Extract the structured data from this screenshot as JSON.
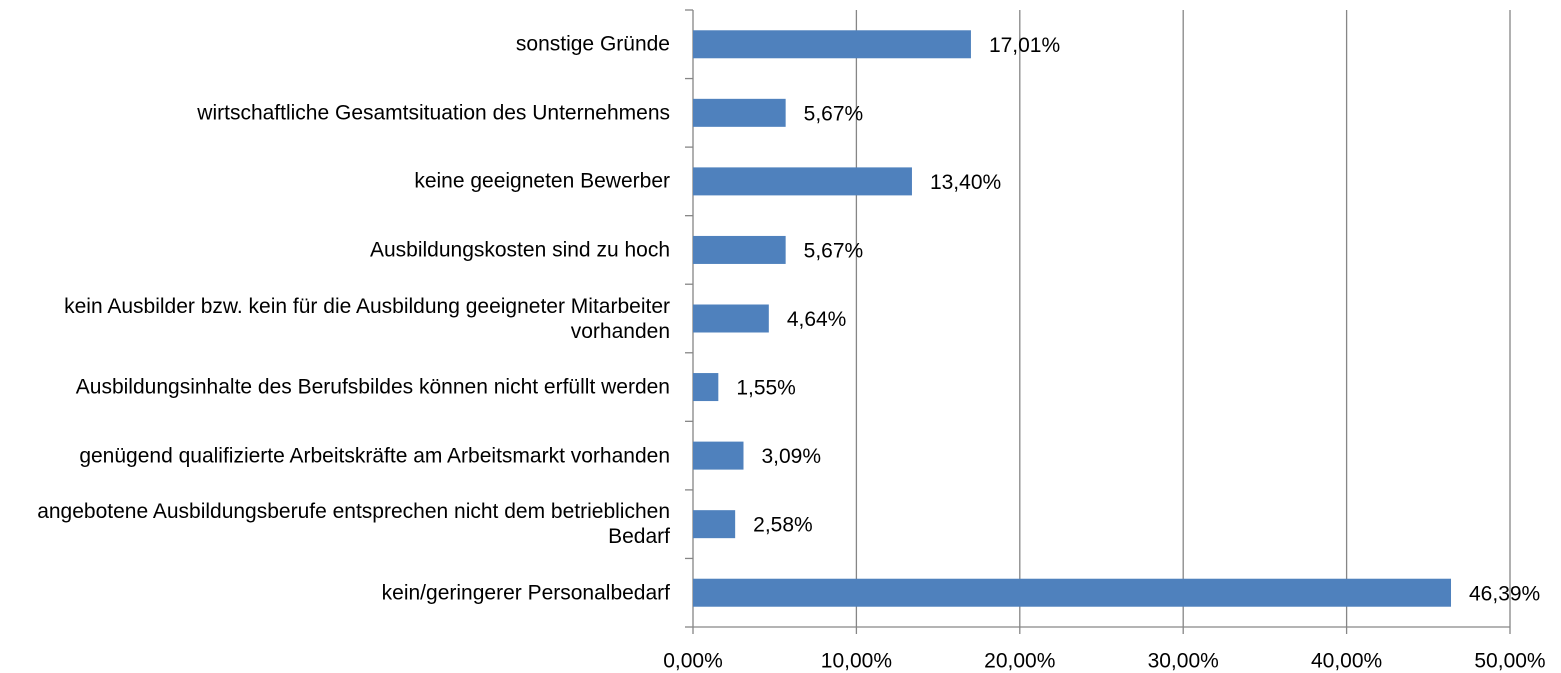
{
  "chart_data": {
    "type": "bar",
    "orientation": "horizontal",
    "categories": [
      "sonstige Gründe",
      "wirtschaftliche Gesamtsituation des Unternehmens",
      "keine geeigneten Bewerber",
      "Ausbildungskosten sind zu hoch",
      "kein Ausbilder bzw. kein für die Ausbildung geeigneter Mitarbeiter vorhanden",
      "Ausbildungsinhalte des Berufsbildes können nicht erfüllt werden",
      "genügend qualifizierte Arbeitskräfte am Arbeitsmarkt vorhanden",
      "angebotene Ausbildungsberufe entsprechen nicht dem betrieblichen Bedarf",
      "kein/geringerer Personalbedarf"
    ],
    "values": [
      17.01,
      5.67,
      13.4,
      5.67,
      4.64,
      1.55,
      3.09,
      2.58,
      46.39
    ],
    "value_labels": [
      "17,01%",
      "5,67%",
      "13,40%",
      "5,67%",
      "4,64%",
      "1,55%",
      "3,09%",
      "2,58%",
      "46,39%"
    ],
    "color": "#4f81bd",
    "xlim": [
      0,
      50
    ],
    "xticks": [
      {
        "value": 0,
        "label": "0,00%"
      },
      {
        "value": 10,
        "label": "10,00%"
      },
      {
        "value": 20,
        "label": "20,00%"
      },
      {
        "value": 30,
        "label": "30,00%"
      },
      {
        "value": 40,
        "label": "40,00%"
      },
      {
        "value": 50,
        "label": "50,00%"
      }
    ],
    "grid": true
  }
}
